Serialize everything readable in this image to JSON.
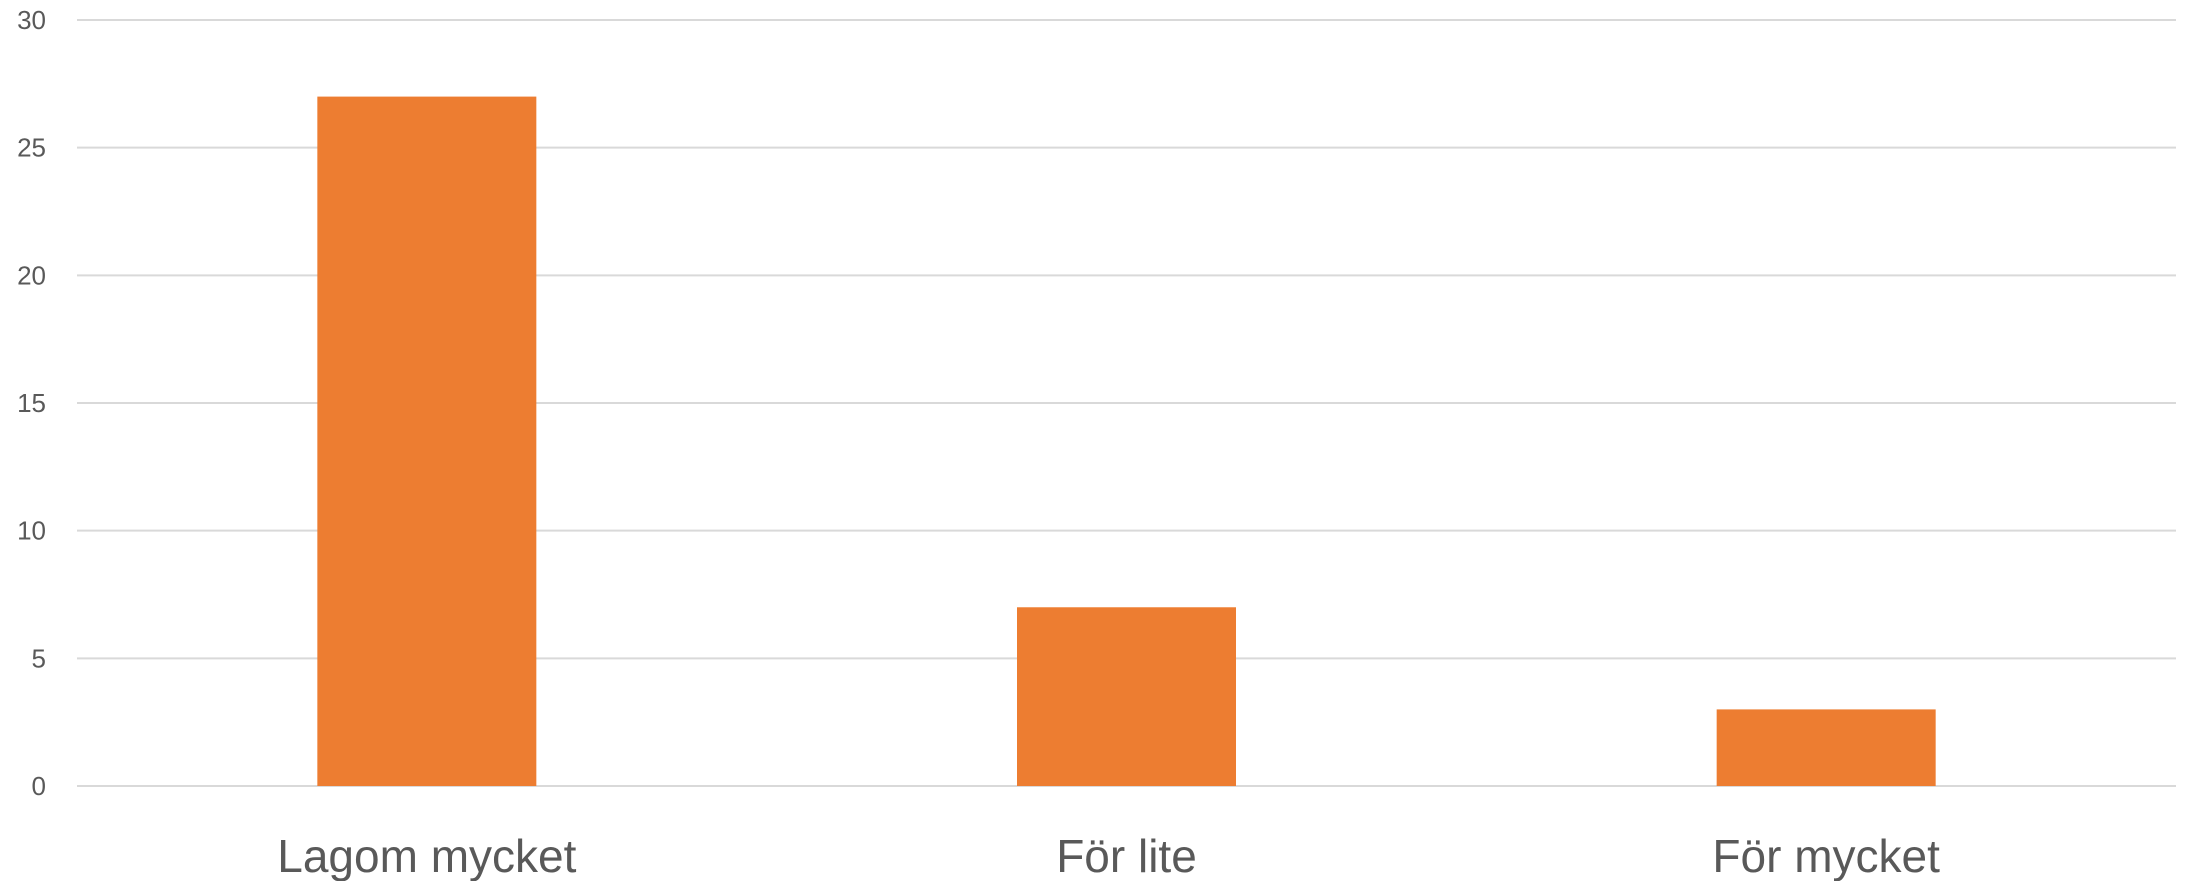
{
  "chart_data": {
    "type": "bar",
    "categories": [
      "Lagom mycket",
      "För lite",
      "För mycket"
    ],
    "values": [
      27,
      7,
      3
    ],
    "title": "",
    "xlabel": "",
    "ylabel": "",
    "ylim": [
      0,
      30
    ],
    "yticks": [
      "0",
      "5",
      "10",
      "15",
      "20",
      "25",
      "30"
    ],
    "grid": true,
    "legend": "none",
    "colors": {
      "bar": "#ED7D31",
      "grid": "#D9D9D9",
      "text": "#595959"
    }
  }
}
